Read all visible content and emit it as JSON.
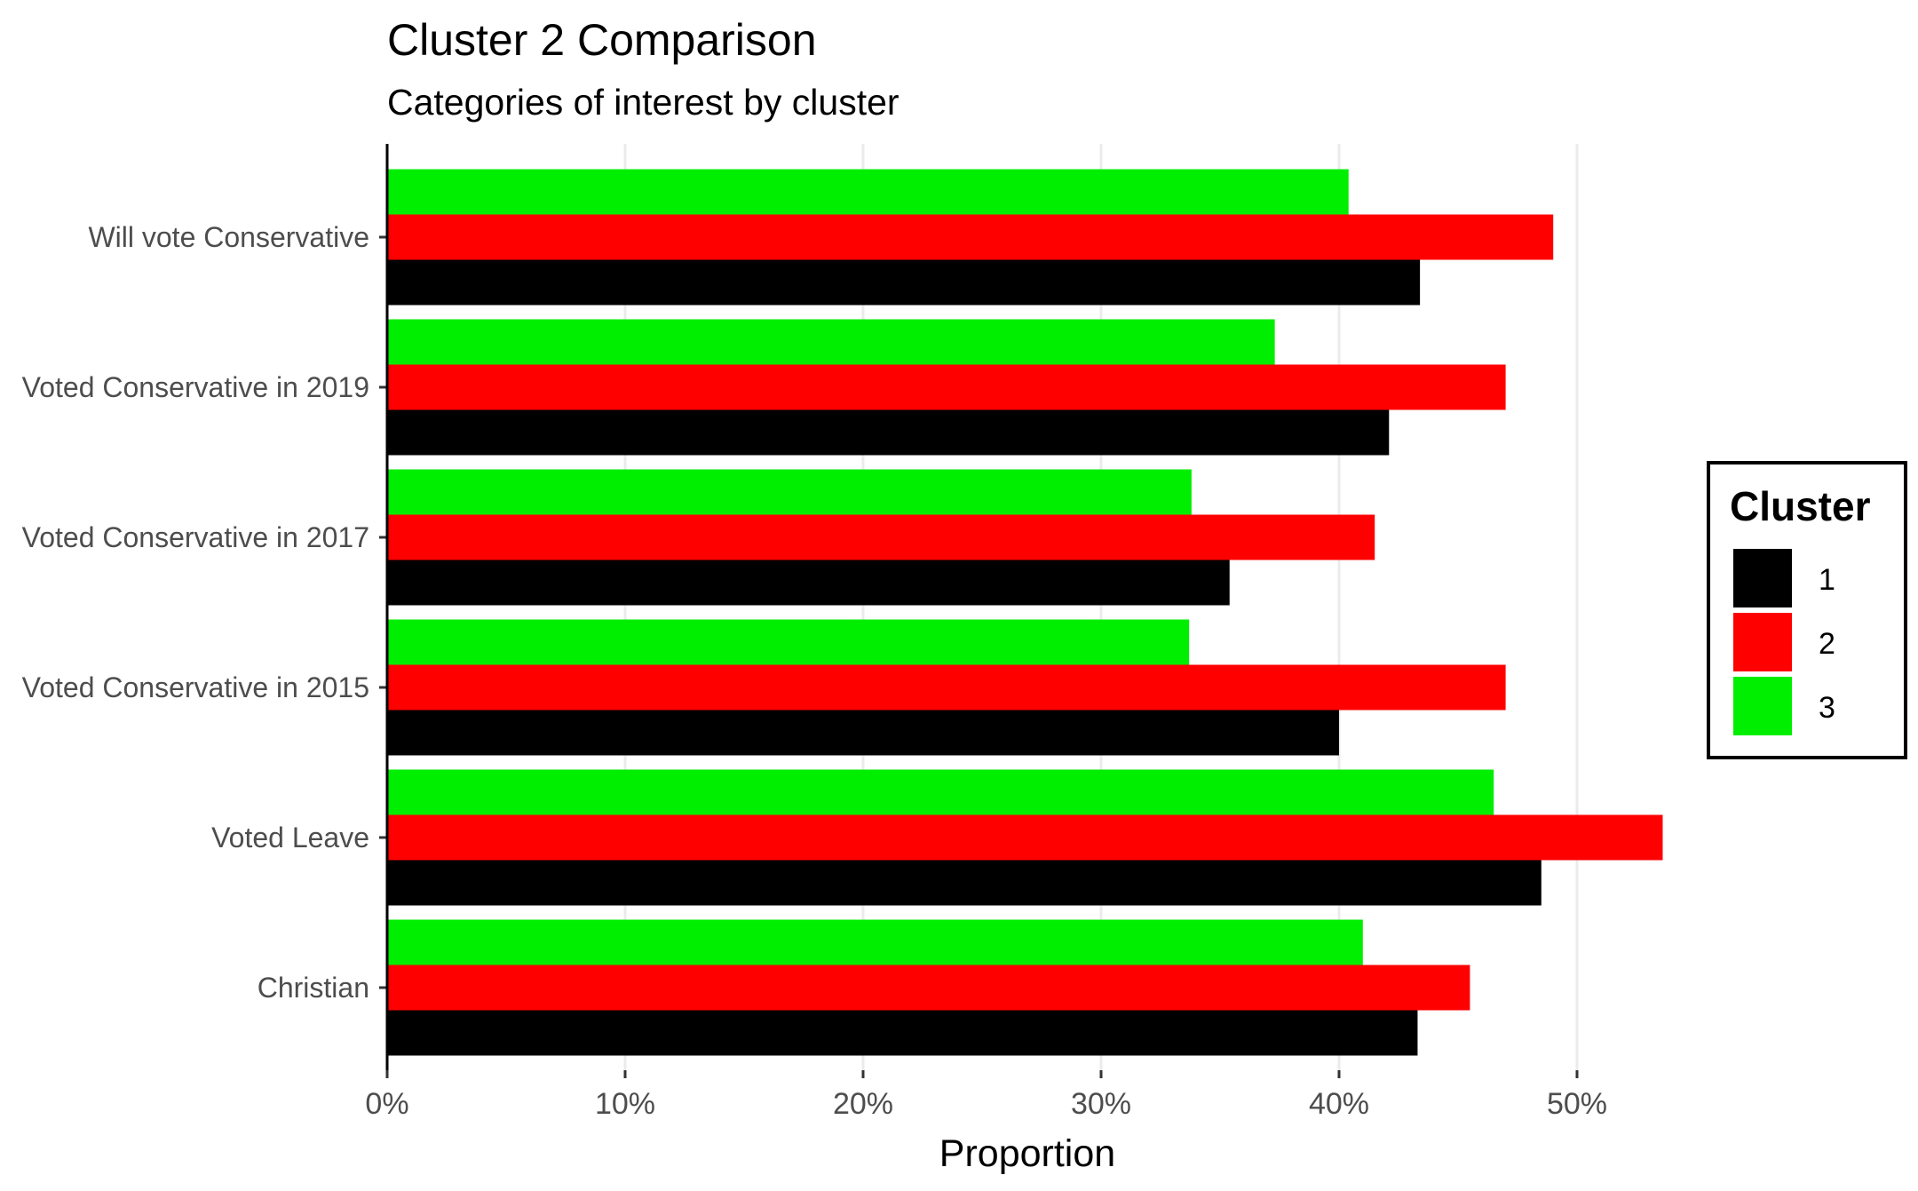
{
  "chart_data": {
    "type": "bar",
    "orientation": "horizontal",
    "title": "Cluster 2 Comparison",
    "subtitle": "Categories of interest by cluster",
    "xlabel": "Proportion",
    "ylabel": "",
    "xlim": [
      0,
      0.56
    ],
    "x_ticks": [
      0,
      0.1,
      0.2,
      0.3,
      0.4,
      0.5
    ],
    "x_tick_labels": [
      "0%",
      "10%",
      "20%",
      "30%",
      "40%",
      "50%"
    ],
    "grid": "vertical major",
    "categories": [
      "Will vote Conservative",
      "Voted Conservative in 2019",
      "Voted Conservative in 2017",
      "Voted Conservative in 2015",
      "Voted Leave",
      "Christian"
    ],
    "series": [
      {
        "name": "1",
        "color": "#000000",
        "values": [
          0.434,
          0.421,
          0.354,
          0.4,
          0.485,
          0.433
        ]
      },
      {
        "name": "2",
        "color": "#ff0000",
        "values": [
          0.49,
          0.47,
          0.415,
          0.47,
          0.536,
          0.455
        ]
      },
      {
        "name": "3",
        "color": "#00ee00",
        "values": [
          0.404,
          0.373,
          0.338,
          0.337,
          0.465,
          0.41
        ]
      }
    ],
    "legend": {
      "title": "Cluster",
      "position": "right",
      "entries": [
        "1",
        "2",
        "3"
      ]
    }
  }
}
